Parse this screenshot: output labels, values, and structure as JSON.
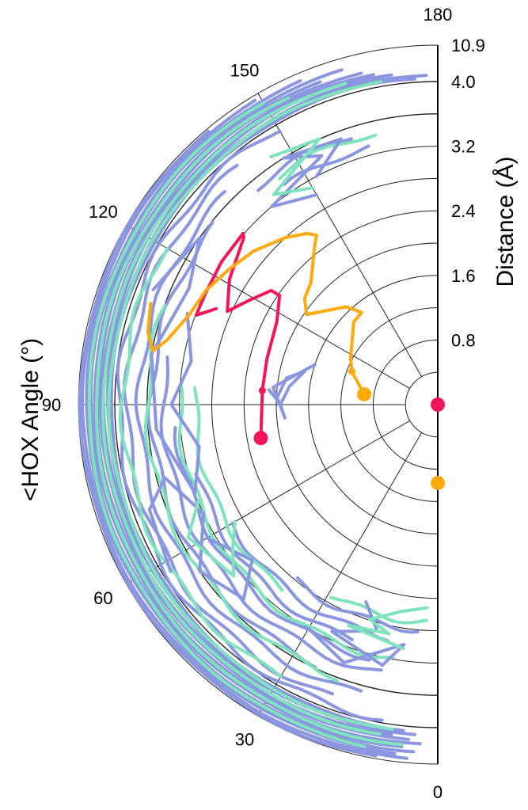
{
  "chart_data": {
    "type": "polar-line",
    "ylabel": "Distance (Å)",
    "xlabel": "<HOX Angle (°)",
    "angle_range": [
      0,
      180
    ],
    "angle_ticks": [
      "0",
      "30",
      "60",
      "90",
      "120",
      "150",
      "180"
    ],
    "angle_tick_values": [
      0,
      30,
      60,
      90,
      120,
      150,
      180
    ],
    "radial_ticks": [
      "0.8",
      "1.6",
      "2.4",
      "3.2",
      "4.0",
      "10.9"
    ],
    "radial_tick_values": [
      0.8,
      1.6,
      2.4,
      3.2,
      4.0,
      10.9
    ],
    "radial_gridlines": [
      0.4,
      0.8,
      1.2,
      1.6,
      2.0,
      2.4,
      2.8,
      3.2,
      3.6,
      4.0,
      10.9
    ],
    "radial_axis_break": "4.0 to 10.9 compressed",
    "colors": {
      "blue": "#8a97e0",
      "green": "#7fe3bd",
      "red": "#f2155a",
      "orange": "#ffa90a"
    },
    "series": [
      {
        "name": "red-trajectory",
        "color": "red",
        "points": [
          [
            79.3,
            2.23
          ],
          [
            94.6,
            2.18
          ],
          [
            105.0,
            2.19
          ],
          [
            117.1,
            2.24
          ],
          [
            124.6,
            2.38
          ],
          [
            124.4,
            2.5
          ],
          [
            118.6,
            2.68
          ],
          [
            113.9,
            2.85
          ],
          [
            121.0,
            3.01
          ],
          [
            130.7,
            3.17
          ],
          [
            131.3,
            3.21
          ],
          [
            123.5,
            3.21
          ],
          [
            115.7,
            3.19
          ],
          [
            110.3,
            3.19
          ],
          [
            113.4,
            2.99
          ]
        ],
        "markers": [
          [
            79.3,
            2.23,
            "large"
          ],
          [
            94.6,
            2.18,
            "small"
          ],
          [
            180,
            0.0,
            "large"
          ]
        ]
      },
      {
        "name": "orange-trajectory",
        "color": "orange",
        "points": [
          [
            98.0,
            0.92
          ],
          [
            111.1,
            1.14
          ],
          [
            117.8,
            1.22
          ],
          [
            134.5,
            1.46
          ],
          [
            140.4,
            1.48
          ],
          [
            136.9,
            1.66
          ],
          [
            124.5,
            1.97
          ],
          [
            128.6,
            2.11
          ],
          [
            133.9,
            2.18
          ],
          [
            141.8,
            2.47
          ],
          [
            144.4,
            2.58
          ],
          [
            142.5,
            2.67
          ],
          [
            137.6,
            2.8
          ],
          [
            129.8,
            2.97
          ],
          [
            123.0,
            3.08
          ],
          [
            116.2,
            3.2
          ],
          [
            110.0,
            3.27
          ],
          [
            103.3,
            3.45
          ],
          [
            100.7,
            3.59
          ],
          [
            104.0,
            3.7
          ],
          [
            109.4,
            3.77
          ]
        ],
        "markers": [
          [
            98.0,
            0.92,
            "large"
          ],
          [
            111.1,
            1.14,
            "small"
          ],
          [
            0,
            0.97,
            "large"
          ]
        ]
      }
    ],
    "blue_arcs": [
      [
        4.6,
        6,
        176
      ],
      [
        5.2,
        4,
        178
      ],
      [
        5.9,
        8,
        172
      ],
      [
        6.5,
        5,
        170
      ],
      [
        7.2,
        3,
        168
      ],
      [
        7.9,
        6,
        160
      ],
      [
        8.6,
        4,
        164
      ],
      [
        9.3,
        7,
        158
      ],
      [
        10.0,
        5,
        150
      ],
      [
        10.5,
        10,
        140
      ],
      [
        3.95,
        10,
        150
      ],
      [
        3.85,
        20,
        140
      ],
      [
        3.7,
        15,
        135
      ],
      [
        3.55,
        25,
        130
      ],
      [
        3.4,
        12,
        100
      ],
      [
        3.25,
        15,
        85
      ],
      [
        3.1,
        20,
        75
      ],
      [
        2.95,
        12,
        60
      ],
      [
        2.8,
        5,
        40
      ],
      [
        3.5,
        140,
        162
      ],
      [
        3.3,
        145,
        165
      ]
    ],
    "green_arcs": [
      [
        4.9,
        8,
        170
      ],
      [
        6.1,
        10,
        165
      ],
      [
        7.5,
        6,
        155
      ],
      [
        8.9,
        12,
        150
      ],
      [
        3.9,
        30,
        120
      ],
      [
        3.6,
        20,
        110
      ],
      [
        3.2,
        10,
        95
      ],
      [
        3.0,
        40,
        95
      ],
      [
        2.7,
        3,
        30
      ],
      [
        3.45,
        145,
        168
      ]
    ],
    "blue_squiggles": [
      [
        [
          95,
          2.1
        ],
        [
          92,
          2.0
        ],
        [
          100,
          1.9
        ],
        [
          104,
          1.7
        ],
        [
          97,
          1.85
        ],
        [
          90,
          1.95
        ],
        [
          85,
          1.9
        ],
        [
          96,
          2.05
        ],
        [
          108,
          1.6
        ]
      ],
      [
        [
          110,
          3.3
        ],
        [
          100,
          3.1
        ],
        [
          90,
          3.3
        ],
        [
          80,
          3.0
        ],
        [
          70,
          3.2
        ],
        [
          85,
          3.5
        ],
        [
          100,
          3.6
        ],
        [
          115,
          3.4
        ],
        [
          125,
          3.6
        ],
        [
          112,
          3.8
        ]
      ],
      [
        [
          60,
          3.3
        ],
        [
          50,
          3.0
        ],
        [
          45,
          3.4
        ],
        [
          55,
          3.6
        ],
        [
          65,
          3.2
        ],
        [
          75,
          3.5
        ],
        [
          70,
          3.8
        ],
        [
          58,
          3.9
        ]
      ],
      [
        [
          20,
          2.6
        ],
        [
          15,
          2.9
        ],
        [
          25,
          3.1
        ],
        [
          12,
          3.3
        ],
        [
          8,
          3.0
        ],
        [
          20,
          3.4
        ],
        [
          30,
          3.2
        ]
      ],
      [
        [
          150,
          3.0
        ],
        [
          140,
          3.2
        ],
        [
          155,
          3.4
        ],
        [
          148,
          3.6
        ],
        [
          160,
          3.5
        ],
        [
          152,
          3.2
        ]
      ]
    ],
    "green_squiggles": [
      [
        [
          3,
          2.52
        ],
        [
          10,
          2.6
        ],
        [
          17.6,
          2.79
        ],
        [
          12,
          2.9
        ],
        [
          22,
          2.95
        ],
        [
          8,
          3.05
        ]
      ],
      [
        [
          60,
          2.9
        ],
        [
          55,
          3.1
        ],
        [
          50,
          3.3
        ],
        [
          62,
          3.5
        ],
        [
          68,
          3.2
        ]
      ],
      [
        [
          150,
          3.1
        ],
        [
          142,
          3.3
        ],
        [
          156,
          3.6
        ],
        [
          146,
          3.7
        ]
      ]
    ]
  }
}
